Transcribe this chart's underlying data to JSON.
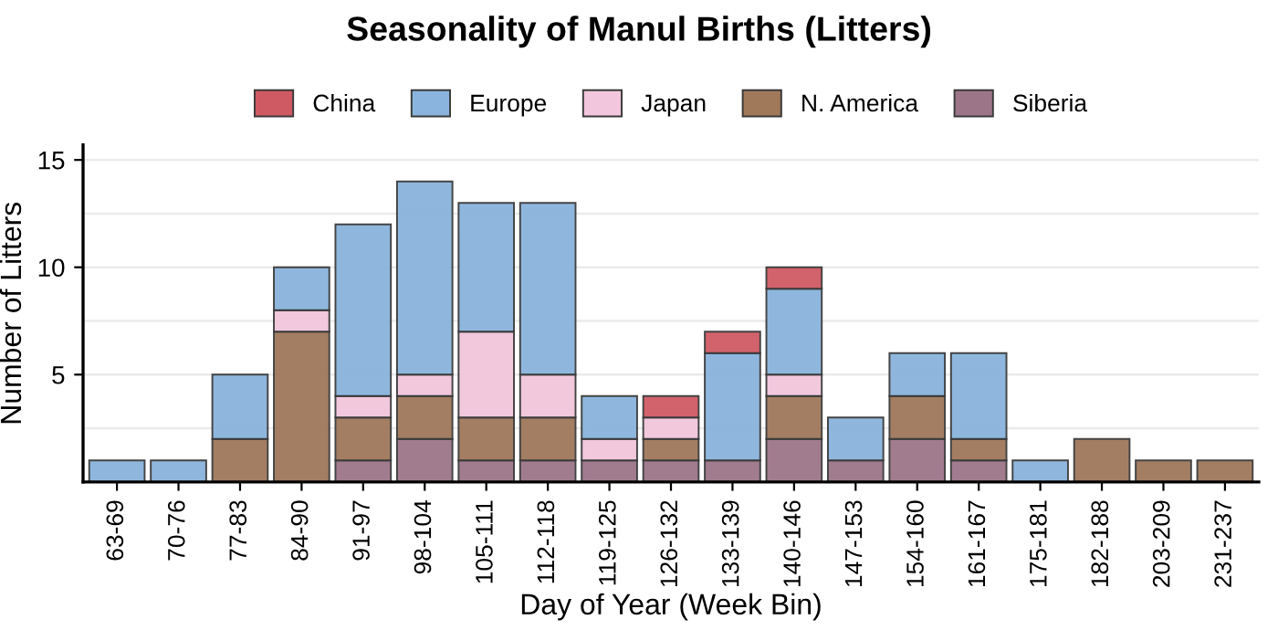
{
  "chart_data": {
    "type": "bar",
    "stacked": true,
    "title": "Seasonality of Manul Births (Litters)",
    "xlabel": "Day of Year (Week Bin)",
    "ylabel": "Number of Litters",
    "categories": [
      "63-69",
      "70-76",
      "77-83",
      "84-90",
      "91-97",
      "98-104",
      "105-111",
      "112-118",
      "119-125",
      "126-132",
      "133-139",
      "140-146",
      "147-153",
      "154-160",
      "161-167",
      "175-181",
      "182-188",
      "203-209",
      "231-237"
    ],
    "series": [
      {
        "name": "Siberia",
        "color": "#9c7589",
        "values": [
          0,
          0,
          0,
          0,
          1,
          2,
          1,
          1,
          1,
          1,
          1,
          2,
          1,
          2,
          1,
          0,
          0,
          0,
          0
        ]
      },
      {
        "name": "N. America",
        "color": "#a0785a",
        "values": [
          0,
          0,
          2,
          7,
          2,
          2,
          2,
          2,
          0,
          1,
          0,
          2,
          0,
          2,
          1,
          0,
          2,
          1,
          1
        ]
      },
      {
        "name": "Japan",
        "color": "#f2c6dc",
        "values": [
          0,
          0,
          0,
          1,
          1,
          1,
          4,
          2,
          1,
          1,
          0,
          1,
          0,
          0,
          0,
          0,
          0,
          0,
          0
        ]
      },
      {
        "name": "Europe",
        "color": "#8ab4dd",
        "values": [
          1,
          1,
          3,
          2,
          8,
          9,
          6,
          8,
          2,
          0,
          5,
          4,
          2,
          2,
          4,
          1,
          0,
          0,
          0
        ]
      },
      {
        "name": "China",
        "color": "#d05a64",
        "values": [
          0,
          0,
          0,
          0,
          0,
          0,
          0,
          0,
          0,
          1,
          1,
          1,
          0,
          0,
          0,
          0,
          0,
          0,
          0
        ]
      }
    ],
    "ylim": [
      0,
      15.7
    ],
    "yticks": [
      5,
      10,
      15
    ],
    "grid": "y",
    "legend": "top"
  }
}
